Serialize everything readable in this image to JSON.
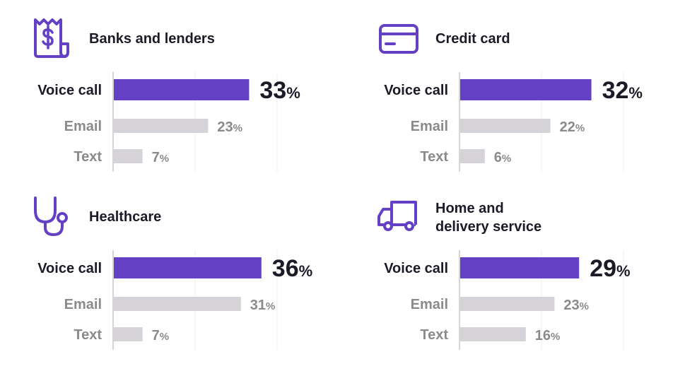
{
  "colors": {
    "accent": "#6441c4",
    "muted": "#d6d3d8",
    "grid": "#ececec",
    "axis": "#c9c9c9",
    "label_dark": "#1c1a26",
    "label_muted": "#8a8a8a"
  },
  "chart_data": [
    {
      "type": "bar",
      "title": "Banks and lenders",
      "icon": "receipt-dollar-icon",
      "categories": [
        "Voice call",
        "Email",
        "Text"
      ],
      "values": [
        33,
        23,
        7
      ],
      "unit": "%",
      "xlim": [
        0,
        100
      ]
    },
    {
      "type": "bar",
      "title": "Credit card",
      "icon": "credit-card-icon",
      "categories": [
        "Voice call",
        "Email",
        "Text"
      ],
      "values": [
        32,
        22,
        6
      ],
      "unit": "%",
      "xlim": [
        0,
        100
      ]
    },
    {
      "type": "bar",
      "title": "Healthcare",
      "icon": "stethoscope-icon",
      "categories": [
        "Voice call",
        "Email",
        "Text"
      ],
      "values": [
        36,
        31,
        7
      ],
      "unit": "%",
      "xlim": [
        0,
        100
      ]
    },
    {
      "type": "bar",
      "title": "Home and\ndelivery service",
      "icon": "delivery-truck-icon",
      "categories": [
        "Voice call",
        "Email",
        "Text"
      ],
      "values": [
        29,
        23,
        16
      ],
      "unit": "%",
      "xlim": [
        0,
        100
      ]
    }
  ]
}
